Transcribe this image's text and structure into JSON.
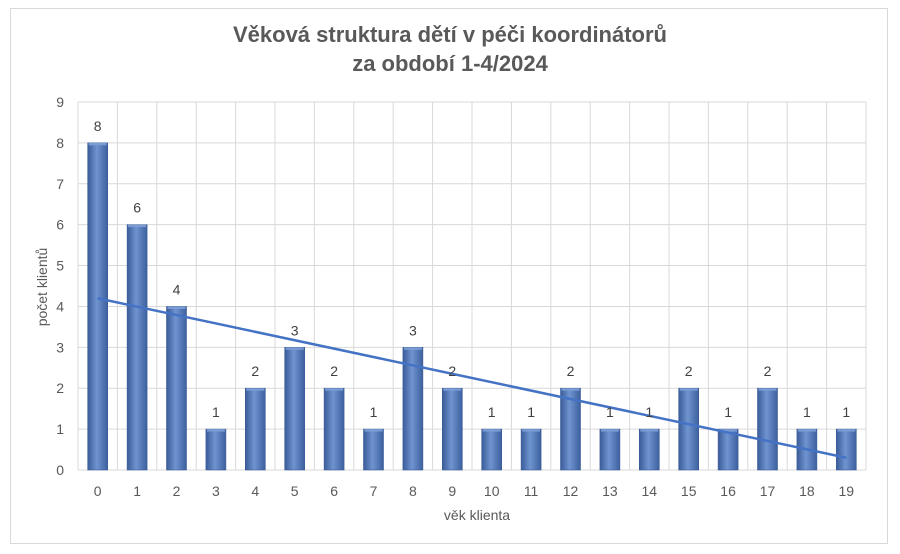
{
  "chart_data": {
    "type": "bar",
    "title_line1": "Věková struktura dětí v péči koordinátorů",
    "title_line2": "za období 1-4/2024",
    "xlabel": "věk klienta",
    "ylabel": "počet klientů",
    "categories": [
      "0",
      "1",
      "2",
      "3",
      "4",
      "5",
      "6",
      "7",
      "8",
      "9",
      "10",
      "11",
      "12",
      "13",
      "14",
      "15",
      "16",
      "17",
      "18",
      "19"
    ],
    "values": [
      8,
      6,
      4,
      1,
      2,
      3,
      2,
      1,
      3,
      2,
      1,
      1,
      2,
      1,
      1,
      2,
      1,
      2,
      1,
      1
    ],
    "ylim": [
      0,
      9
    ],
    "yticks": [
      "0",
      "1",
      "2",
      "3",
      "4",
      "5",
      "6",
      "7",
      "8",
      "9"
    ],
    "grid": true,
    "legend": "none",
    "trendline": {
      "type": "linear",
      "start": 4.2,
      "end": 0.3
    },
    "colors": {
      "bar": "#4f74b3",
      "bar_dark": "#3a5c99",
      "bar_light": "#7d9fd6",
      "trend": "#4472c4",
      "grid": "#d9d9d9",
      "text": "#595959"
    }
  }
}
